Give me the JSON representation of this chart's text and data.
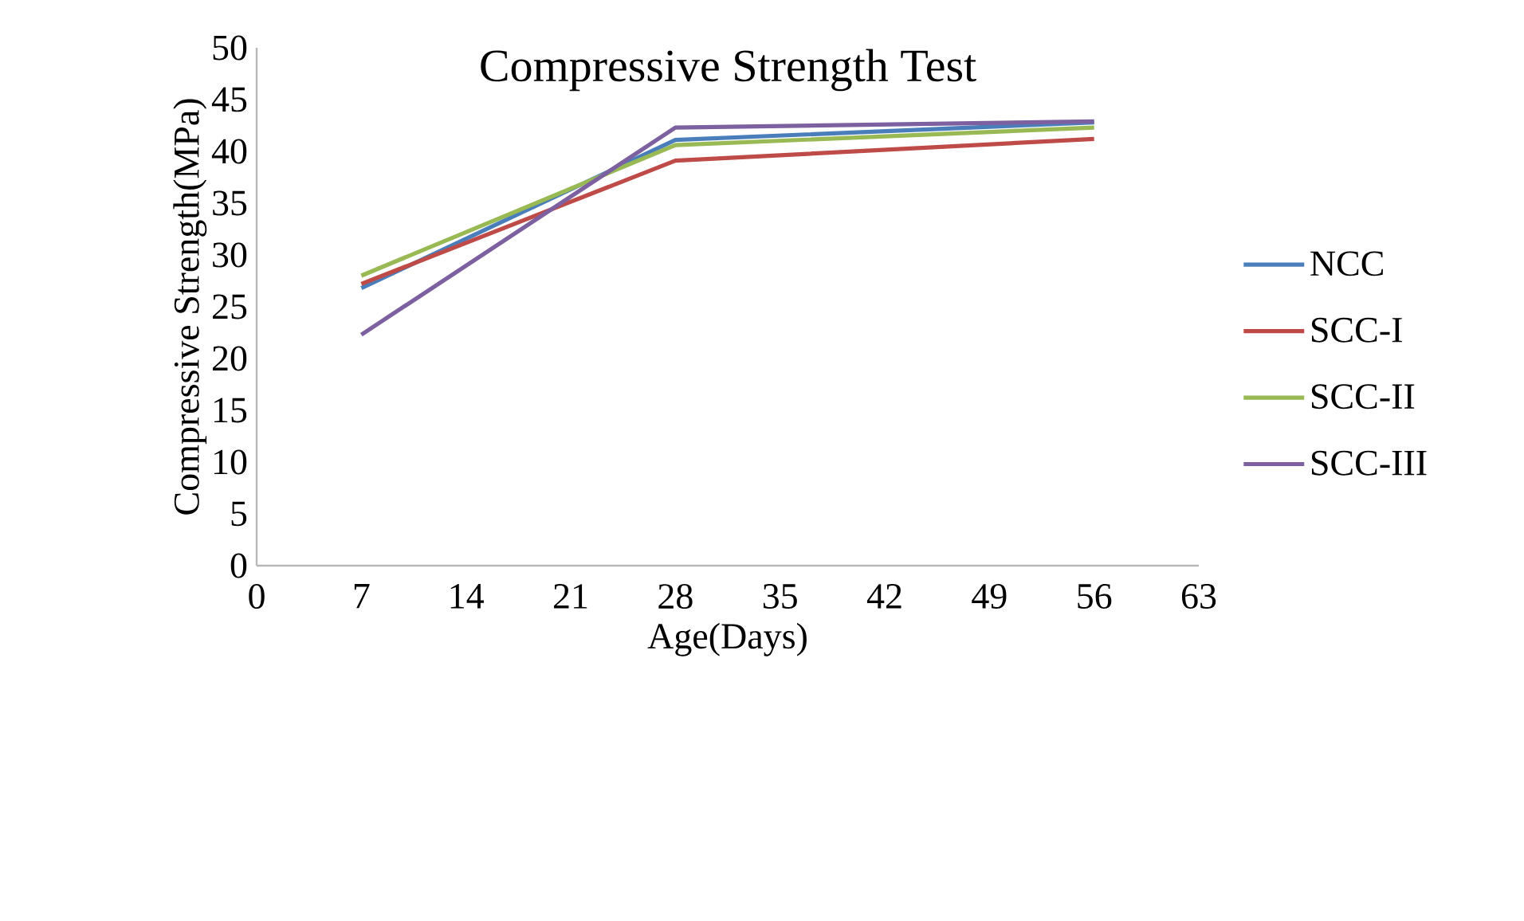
{
  "chart_data": {
    "type": "line",
    "title": "Compressive Strength Test",
    "xlabel": "Age(Days)",
    "ylabel": "Compressive Strength(MPa)",
    "xlim": [
      0,
      63
    ],
    "xticks": [
      0,
      7,
      14,
      21,
      28,
      35,
      42,
      49,
      56,
      63
    ],
    "ylim": [
      0,
      50
    ],
    "yticks": [
      0,
      5,
      10,
      15,
      20,
      25,
      30,
      35,
      40,
      45,
      50
    ],
    "grid": false,
    "legend": "right",
    "marker": "none",
    "series": [
      {
        "name": "NCC",
        "color": "#4a7ebb",
        "x": [
          7,
          28,
          56
        ],
        "values": [
          26.8,
          41.1,
          42.8
        ]
      },
      {
        "name": "SCC-I",
        "color": "#be4b48",
        "x": [
          7,
          28,
          56
        ],
        "values": [
          27.2,
          39.1,
          41.2
        ]
      },
      {
        "name": "SCC-II",
        "color": "#98b954",
        "x": [
          7,
          28,
          56
        ],
        "values": [
          28.0,
          40.6,
          42.3
        ]
      },
      {
        "name": "SCC-III",
        "color": "#7d60a0",
        "x": [
          7,
          28,
          56
        ],
        "values": [
          22.3,
          42.3,
          42.9
        ]
      }
    ]
  }
}
